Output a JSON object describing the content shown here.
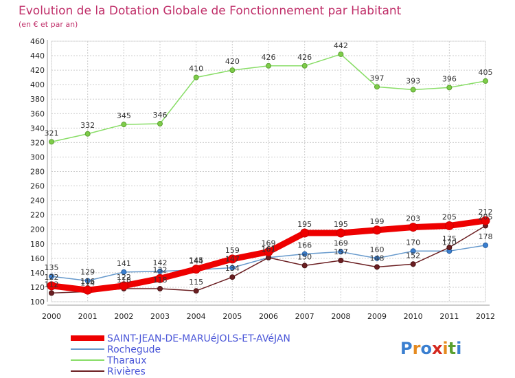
{
  "chart_data": {
    "type": "line",
    "title": "Evolution de la Dotation Globale de Fonctionnement par Habitant",
    "subtitle": "(en € et par an)",
    "xlabel": "",
    "ylabel": "",
    "ylim": [
      100,
      460
    ],
    "ytick_step": 20,
    "grid": true,
    "legend_position": "bottom-left",
    "categories": [
      "2000",
      "2001",
      "2002",
      "2003",
      "2004",
      "2005",
      "2006",
      "2007",
      "2008",
      "2009",
      "2010",
      "2011",
      "2012"
    ],
    "series": [
      {
        "name": "SAINT-JEAN-DE-MARUéJOLS-ET-AVéJAN",
        "color": "#ee0000",
        "values": [
          122,
          116,
          122,
          132,
          145,
          159,
          169,
          195,
          195,
          199,
          203,
          205,
          212
        ]
      },
      {
        "name": "Rochegude",
        "color": "#6699cc",
        "values": [
          135,
          129,
          141,
          142,
          144,
          147,
          161,
          166,
          169,
          160,
          170,
          170,
          178
        ]
      },
      {
        "name": "Tharaux",
        "color": "#88dd66",
        "values": [
          321,
          332,
          345,
          346,
          410,
          420,
          426,
          426,
          442,
          397,
          393,
          396,
          405
        ]
      },
      {
        "name": "Rivières",
        "color": "#6b1f22",
        "values": [
          112,
          114,
          118,
          118,
          115,
          134,
          161,
          150,
          157,
          148,
          152,
          175,
          205
        ]
      }
    ]
  },
  "logo": {
    "text": "Proxiti"
  }
}
